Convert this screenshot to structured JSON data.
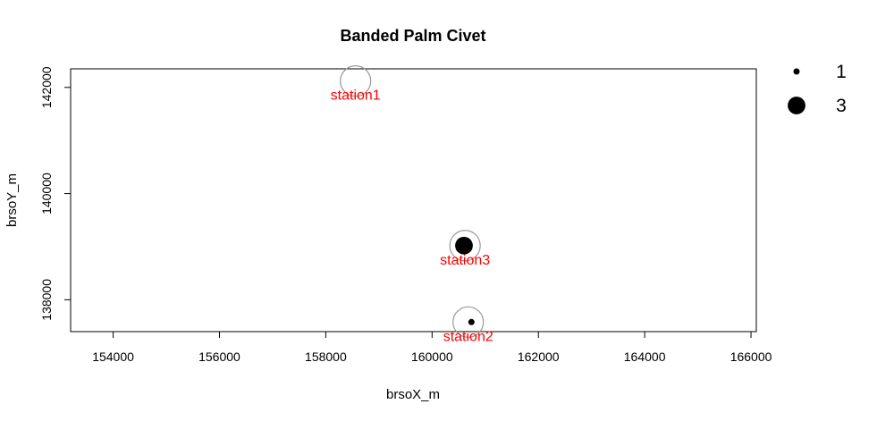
{
  "chart_data": {
    "type": "scatter",
    "title": "Banded Palm Civet",
    "xlabel": "brsoX_m",
    "ylabel": "brsoY_m",
    "xlim": [
      153200,
      166100
    ],
    "ylim": [
      137400,
      142350
    ],
    "x_ticks": [
      154000,
      156000,
      158000,
      160000,
      162000,
      164000,
      166000
    ],
    "y_ticks": [
      138000,
      140000,
      142000
    ],
    "x_tick_labels": [
      "154000",
      "156000",
      "158000",
      "160000",
      "162000",
      "164000",
      "166000"
    ],
    "y_tick_labels": [
      "138000",
      "140000",
      "142000"
    ],
    "stations": [
      {
        "label": "station1",
        "x": 158560,
        "y": 142120
      },
      {
        "label": "station2",
        "x": 160680,
        "y": 137580
      },
      {
        "label": "station3",
        "x": 160620,
        "y": 139020
      }
    ],
    "detections": [
      {
        "station": "station2",
        "x": 160740,
        "y": 137580,
        "count": 1
      },
      {
        "station": "station3",
        "x": 160600,
        "y": 139020,
        "count": 3
      }
    ],
    "legend": {
      "position": "top-right",
      "entries": [
        {
          "label": "1",
          "count": 1
        },
        {
          "label": "3",
          "count": 3
        }
      ]
    },
    "colors": {
      "station_ring": "#999999",
      "station_label": "#ff0000",
      "detection": "#000000"
    },
    "grid": false
  }
}
